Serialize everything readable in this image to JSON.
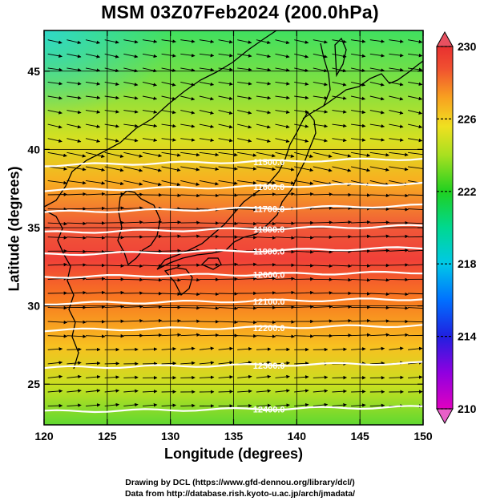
{
  "title": "MSM 03Z07Feb2024 (200.0hPa)",
  "x_axis": {
    "label": "Longitude (degrees)",
    "min": 120,
    "max": 150,
    "ticks": [
      120,
      125,
      130,
      135,
      140,
      145,
      150
    ]
  },
  "y_axis": {
    "label": "Latitude  (degrees)",
    "min": 22.4,
    "max": 47.6,
    "ticks": [
      25,
      30,
      35,
      40,
      45
    ]
  },
  "colorbar": {
    "min": 210,
    "max": 230,
    "ticks": [
      210,
      214,
      218,
      222,
      226,
      230
    ]
  },
  "contours": [
    {
      "label": "11500.0",
      "lon": 137.8,
      "lat": 39.2
    },
    {
      "label": "11600.0",
      "lon": 137.8,
      "lat": 37.6
    },
    {
      "label": "11700.0",
      "lon": 137.8,
      "lat": 36.2
    },
    {
      "label": "11800.0",
      "lon": 137.8,
      "lat": 34.9
    },
    {
      "label": "11900.0",
      "lon": 137.8,
      "lat": 33.5
    },
    {
      "label": "12000.0",
      "lon": 137.8,
      "lat": 32.0
    },
    {
      "label": "12100.0",
      "lon": 137.8,
      "lat": 30.3
    },
    {
      "label": "12200.0",
      "lon": 137.8,
      "lat": 28.6
    },
    {
      "label": "12300.0",
      "lon": 137.8,
      "lat": 26.2
    },
    {
      "label": "12400.0",
      "lon": 137.8,
      "lat": 23.4
    }
  ],
  "credits": {
    "line1": "Drawing by DCL (https://www.gfd-dennou.org/library/dcl/)",
    "line2": "Data from http://database.rish.kyoto-u.ac.jp/arch/jmadata/"
  }
}
